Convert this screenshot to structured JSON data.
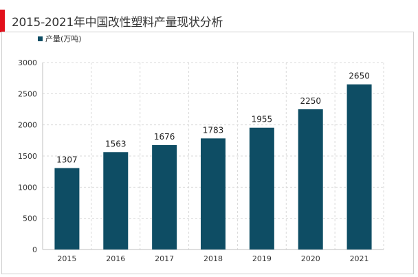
{
  "title": "2015-2021年中国改性塑料产量现状分析",
  "colors": {
    "accent": "#e2101b",
    "bar": "#0e4d64",
    "grid": "#d9d9d9"
  },
  "chart_data": {
    "type": "bar",
    "categories": [
      "2015",
      "2016",
      "2017",
      "2018",
      "2019",
      "2020",
      "2021"
    ],
    "series": [
      {
        "name": "产量(万吨)",
        "values": [
          1307,
          1563,
          1676,
          1783,
          1955,
          2250,
          2650
        ]
      }
    ],
    "ylim": [
      0,
      3000
    ],
    "yticks": [
      0,
      500,
      1000,
      1500,
      2000,
      2500,
      3000
    ],
    "grid": true,
    "legend_position": "top-left",
    "data_labels": true
  }
}
